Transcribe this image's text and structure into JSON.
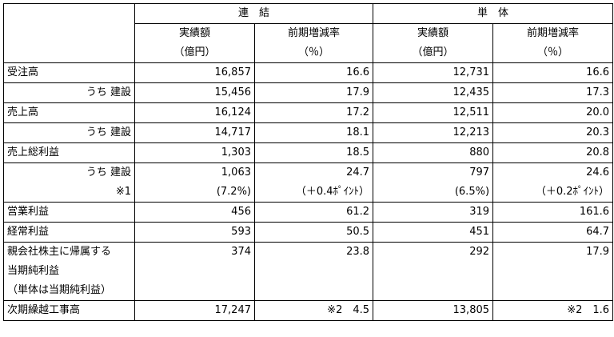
{
  "header": {
    "consolidated": "連　結",
    "standalone": "単　体",
    "col_result": "実績額",
    "col_result_unit": "（億円）",
    "col_change": "前期増減率",
    "col_change_unit": "（％）"
  },
  "rows": {
    "orders": {
      "label": "受注高",
      "c_val": "16,857",
      "c_rate": "16.6",
      "s_val": "12,731",
      "s_rate": "16.6"
    },
    "orders_const": {
      "label": "うち 建設",
      "c_val": "15,456",
      "c_rate": "17.9",
      "s_val": "12,435",
      "s_rate": "17.3"
    },
    "sales": {
      "label": "売上高",
      "c_val": "16,124",
      "c_rate": "17.2",
      "s_val": "12,511",
      "s_rate": "20.0"
    },
    "sales_const": {
      "label": "うち 建設",
      "c_val": "14,717",
      "c_rate": "18.1",
      "s_val": "12,213",
      "s_rate": "20.3"
    },
    "gross": {
      "label": "売上総利益",
      "c_val": "1,303",
      "c_rate": "18.5",
      "s_val": "880",
      "s_rate": "20.8"
    },
    "gross_const": {
      "label": "うち 建設",
      "c_val": "1,063",
      "c_rate": "24.7",
      "s_val": "797",
      "s_rate": "24.6"
    },
    "gross_note": {
      "label": "※1",
      "c_val": "(7.2%)",
      "c_rate": "（＋0.4ﾎﾟｲﾝﾄ）",
      "s_val": "(6.5%)",
      "s_rate": "（＋0.2ﾎﾟｲﾝﾄ）"
    },
    "operating": {
      "label": "営業利益",
      "c_val": "456",
      "c_rate": "61.2",
      "s_val": "319",
      "s_rate": "161.6"
    },
    "ordinary": {
      "label": "経常利益",
      "c_val": "593",
      "c_rate": "50.5",
      "s_val": "451",
      "s_rate": "64.7"
    },
    "net": {
      "label1": "親会社株主に帰属する",
      "label2": "当期純利益",
      "label3": "（単体は当期純利益）",
      "c_val": "374",
      "c_rate": "23.8",
      "s_val": "292",
      "s_rate": "17.9"
    },
    "backlog": {
      "label": "次期繰越工事高",
      "c_val": "17,247",
      "c_rate": "※2　4.5",
      "s_val": "13,805",
      "s_rate": "※2　1.6"
    }
  }
}
